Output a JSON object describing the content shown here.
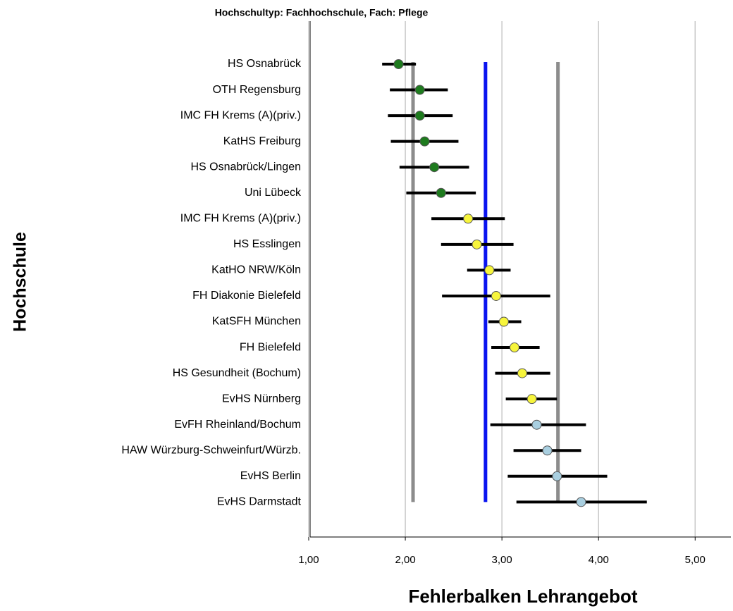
{
  "chart_data": {
    "type": "errorbar",
    "title": "Hochschultyp: Fachhochschule, Fach: Pflege",
    "xlabel": "Fehlerbalken Lehrangebot",
    "ylabel": "Hochschule",
    "categories": [
      "HS Osnabrück",
      "OTH Regensburg",
      "IMC FH Krems (A)(priv.)",
      "KatHS Freiburg",
      "HS Osnabrück/Lingen",
      "Uni Lübeck",
      "IMC FH Krems (A)(priv.)",
      "HS Esslingen",
      "KatHO NRW/Köln",
      "FH Diakonie Bielefeld",
      "KatSFH München",
      "FH Bielefeld",
      "HS Gesundheit (Bochum)",
      "EvHS Nürnberg",
      "EvFH Rheinland/Bochum",
      "HAW Würzburg-Schweinfurt/Würzb.",
      "EvHS Berlin",
      "EvHS Darmstadt"
    ],
    "values": [
      1.93,
      2.15,
      2.15,
      2.2,
      2.3,
      2.37,
      2.65,
      2.74,
      2.87,
      2.94,
      3.02,
      3.13,
      3.21,
      3.31,
      3.36,
      3.47,
      3.57,
      3.82
    ],
    "lower": [
      1.76,
      1.84,
      1.82,
      1.85,
      1.94,
      2.01,
      2.27,
      2.37,
      2.64,
      2.38,
      2.86,
      2.89,
      2.93,
      3.04,
      2.88,
      3.12,
      3.06,
      3.15
    ],
    "upper": [
      2.11,
      2.44,
      2.49,
      2.55,
      2.66,
      2.73,
      3.03,
      3.12,
      3.09,
      3.5,
      3.2,
      3.39,
      3.5,
      3.57,
      3.87,
      3.82,
      4.09,
      4.5
    ],
    "point_colors": [
      "#1e7b1e",
      "#1e7b1e",
      "#1e7b1e",
      "#1e7b1e",
      "#1e7b1e",
      "#1e7b1e",
      "#f7f53c",
      "#f7f53c",
      "#f7f53c",
      "#f7f53c",
      "#f7f53c",
      "#f7f53c",
      "#f7f53c",
      "#f7f53c",
      "#a9cfe0",
      "#a9cfe0",
      "#a9cfe0",
      "#a9cfe0"
    ],
    "reference_lines": [
      {
        "value": 2.08,
        "color": "#8c8c8c"
      },
      {
        "value": 2.83,
        "color": "#0a14f0"
      },
      {
        "value": 3.58,
        "color": "#8c8c8c"
      }
    ],
    "xlim": [
      1,
      5.37
    ],
    "xticks": [
      {
        "value": 1,
        "label": "1,00"
      },
      {
        "value": 2,
        "label": "2,00"
      },
      {
        "value": 3,
        "label": "3,00"
      },
      {
        "value": 4,
        "label": "4,00"
      },
      {
        "value": 5,
        "label": "5,00"
      }
    ],
    "grid": true
  }
}
